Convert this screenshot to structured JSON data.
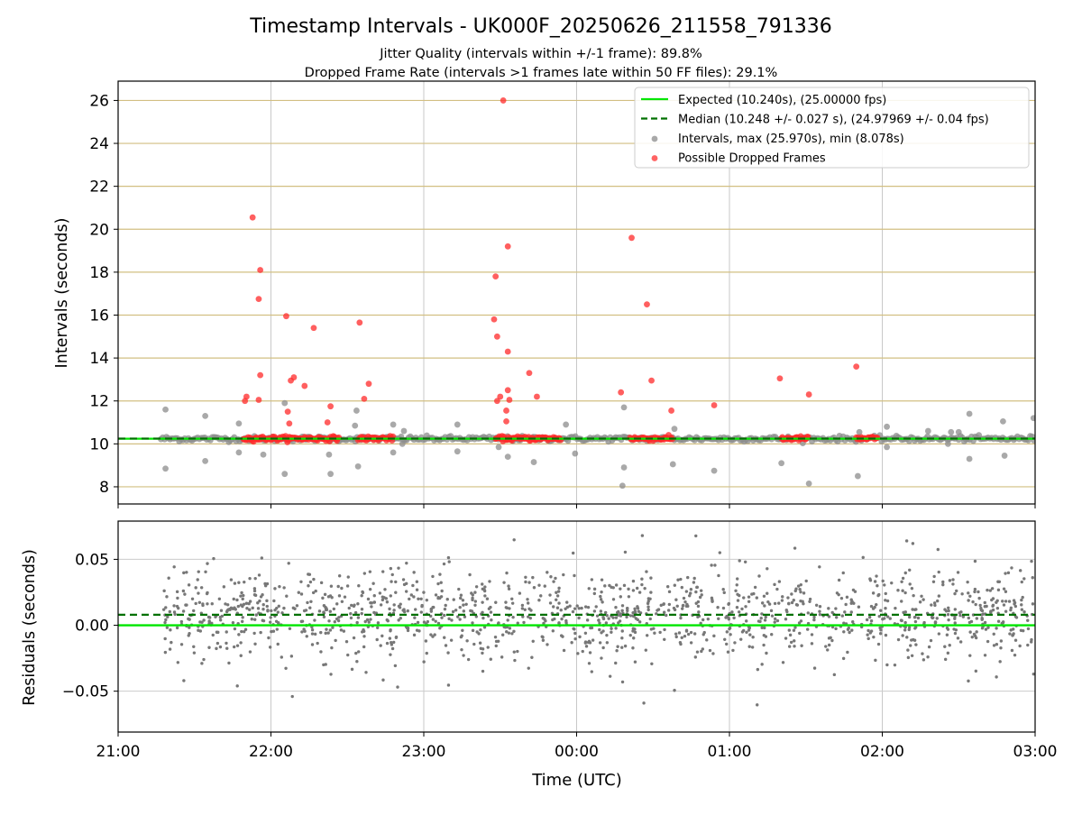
{
  "chart_data": {
    "type": "scatter",
    "title": "Timestamp Intervals - UK000F_20250626_211558_791336",
    "subtitle_lines": [
      "Jitter Quality (intervals within +/-1 frame): 89.8%",
      "Dropped Frame Rate (intervals >1 frames late within 50 FF files): 29.1%"
    ],
    "xlabel": "Time (UTC)",
    "x_ticks": [
      "21:00",
      "22:00",
      "23:00",
      "00:00",
      "01:00",
      "02:00",
      "03:00"
    ],
    "x_range_hours": [
      21.0,
      27.0
    ],
    "top_panel": {
      "ylabel": "Intervals (seconds)",
      "ylim": [
        7.2,
        26.9
      ],
      "y_ticks": [
        8,
        10,
        12,
        14,
        16,
        18,
        20,
        22,
        24,
        26
      ],
      "grid": "horizontal lines tan, vertical lines light gray",
      "legend_position": "top-right",
      "legend": [
        {
          "label": "Expected (10.240s), (25.00000 fps)",
          "style": "line-solid",
          "color": "#00e600"
        },
        {
          "label": "Median (10.248 +/- 0.027 s), (24.97969 +/- 0.04 fps)",
          "style": "line-dashed",
          "color": "#007000"
        },
        {
          "label": "Intervals, max (25.970s), min (8.078s)",
          "style": "marker",
          "color": "#8c8c8c"
        },
        {
          "label": "Possible Dropped Frames",
          "style": "marker",
          "color": "#ff3030"
        }
      ],
      "expected_value": 10.24,
      "median_value": 10.248,
      "dense_band": {
        "x_start": 21.28,
        "x_end": 27.0,
        "y": 10.24
      },
      "dropped_clusters": [
        {
          "x_start": 21.82,
          "x_end": 22.45,
          "y": 10.25
        },
        {
          "x_start": 22.57,
          "x_end": 22.8,
          "y": 10.25
        },
        {
          "x_start": 23.47,
          "x_end": 23.9,
          "y": 10.25
        },
        {
          "x_start": 24.35,
          "x_end": 24.63,
          "y": 10.25
        },
        {
          "x_start": 25.34,
          "x_end": 25.52,
          "y": 10.25
        },
        {
          "x_start": 25.83,
          "x_end": 25.97,
          "y": 10.25
        }
      ],
      "intervals_outliers": [
        [
          21.31,
          11.6
        ],
        [
          21.31,
          8.85
        ],
        [
          21.57,
          11.3
        ],
        [
          21.57,
          9.2
        ],
        [
          21.79,
          10.95
        ],
        [
          21.79,
          9.6
        ],
        [
          21.95,
          9.5
        ],
        [
          22.09,
          11.9
        ],
        [
          22.09,
          8.6
        ],
        [
          22.38,
          9.5
        ],
        [
          22.39,
          8.6
        ],
        [
          22.56,
          11.55
        ],
        [
          22.57,
          8.95
        ],
        [
          22.55,
          10.85
        ],
        [
          22.8,
          10.9
        ],
        [
          22.8,
          9.6
        ],
        [
          22.87,
          10.6
        ],
        [
          22.86,
          10.0
        ],
        [
          23.22,
          10.9
        ],
        [
          23.22,
          9.65
        ],
        [
          23.49,
          9.85
        ],
        [
          23.55,
          9.4
        ],
        [
          23.72,
          9.15
        ],
        [
          23.93,
          10.9
        ],
        [
          23.99,
          9.55
        ],
        [
          24.31,
          11.7
        ],
        [
          24.31,
          8.9
        ],
        [
          24.3,
          8.05
        ],
        [
          24.63,
          9.05
        ],
        [
          24.64,
          10.7
        ],
        [
          24.9,
          8.75
        ],
        [
          25.34,
          9.1
        ],
        [
          25.52,
          8.15
        ],
        [
          25.84,
          8.5
        ],
        [
          25.85,
          10.55
        ],
        [
          26.03,
          10.8
        ],
        [
          26.03,
          9.85
        ],
        [
          26.3,
          10.6
        ],
        [
          26.43,
          10.0
        ],
        [
          26.57,
          11.4
        ],
        [
          26.57,
          9.3
        ],
        [
          26.79,
          11.05
        ],
        [
          26.8,
          9.45
        ],
        [
          26.99,
          11.2
        ],
        [
          26.45,
          10.55
        ],
        [
          26.5,
          10.55
        ]
      ],
      "dropped_outliers": [
        [
          21.88,
          20.55
        ],
        [
          21.93,
          18.1
        ],
        [
          21.92,
          16.75
        ],
        [
          21.93,
          13.2
        ],
        [
          21.92,
          12.05
        ],
        [
          21.84,
          12.2
        ],
        [
          21.83,
          12.0
        ],
        [
          22.1,
          15.95
        ],
        [
          22.11,
          11.5
        ],
        [
          22.12,
          10.95
        ],
        [
          22.13,
          12.95
        ],
        [
          22.15,
          13.1
        ],
        [
          22.22,
          12.7
        ],
        [
          22.28,
          15.4
        ],
        [
          22.37,
          11.0
        ],
        [
          22.39,
          11.75
        ],
        [
          22.58,
          15.65
        ],
        [
          22.61,
          12.1
        ],
        [
          22.64,
          12.8
        ],
        [
          23.47,
          17.8
        ],
        [
          23.46,
          15.8
        ],
        [
          23.48,
          15.0
        ],
        [
          23.48,
          12.0
        ],
        [
          23.5,
          12.2
        ],
        [
          23.52,
          26.0
        ],
        [
          23.55,
          19.2
        ],
        [
          23.55,
          14.3
        ],
        [
          23.55,
          12.5
        ],
        [
          23.56,
          12.05
        ],
        [
          23.54,
          11.55
        ],
        [
          23.54,
          11.05
        ],
        [
          23.69,
          13.3
        ],
        [
          23.74,
          12.2
        ],
        [
          24.36,
          19.6
        ],
        [
          24.46,
          16.5
        ],
        [
          24.29,
          12.4
        ],
        [
          24.49,
          12.95
        ],
        [
          24.62,
          11.55
        ],
        [
          24.9,
          11.8
        ],
        [
          25.33,
          13.05
        ],
        [
          25.52,
          12.3
        ],
        [
          25.83,
          13.6
        ]
      ]
    },
    "bottom_panel": {
      "ylabel": "Residuals (seconds)",
      "ylim": [
        -0.081,
        0.079
      ],
      "y_ticks": [
        0.05,
        0.0,
        -0.05
      ],
      "y_tick_labels": [
        "0.05",
        "0.00",
        "−0.05"
      ],
      "expected_residual": 0.0,
      "median_residual": 0.008,
      "scatter_std": 0.017,
      "scatter_x_range": [
        21.29,
        27.0
      ],
      "scatter_count": 1400,
      "scatter_color": "#777777",
      "notable_points": [
        [
          22.14,
          -0.054
        ],
        [
          21.94,
          0.051
        ],
        [
          21.43,
          -0.042
        ],
        [
          21.78,
          -0.046
        ],
        [
          24.43,
          0.068
        ],
        [
          24.44,
          -0.059
        ],
        [
          26.16,
          0.064
        ],
        [
          26.2,
          0.062
        ],
        [
          26.99,
          -0.037
        ]
      ]
    }
  }
}
